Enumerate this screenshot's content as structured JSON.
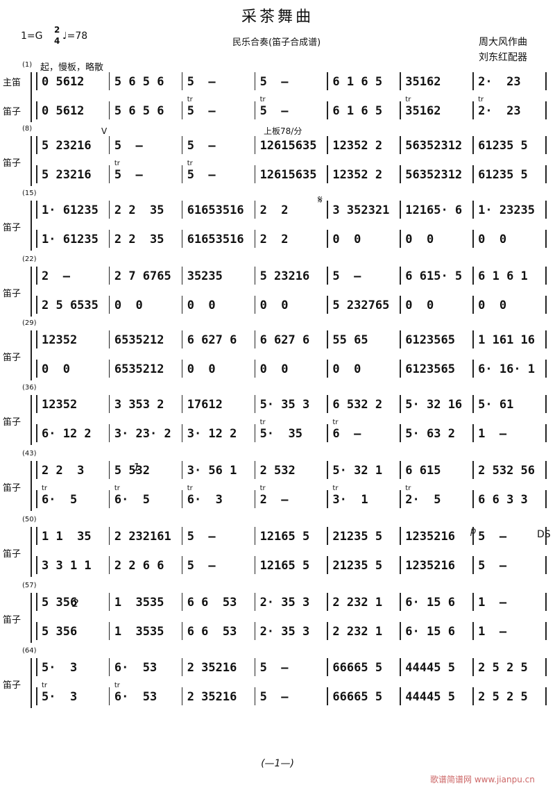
{
  "header": {
    "title": "采茶舞曲",
    "key": "1=G",
    "time_top": "2",
    "time_bottom": "4",
    "tempo": "♩=78",
    "subtitle": "民乐合奏(笛子合成谱)",
    "composer": "周大风作曲",
    "arranger": "刘东红配器"
  },
  "annotations": {
    "opening": "起，慢板，略散",
    "tempo_change": "上板78/分",
    "segno": "𝄋",
    "volta_1": "1",
    "volta_2": "2",
    "ds": "DS",
    "dynamic": "p",
    "breath": "V",
    "trill": "tr"
  },
  "systems": [
    {
      "number": "(1)",
      "labels": [
        "主笛",
        "笛子"
      ],
      "top": [
        "0 5612",
        "5 6 5 6",
        "5  –",
        "5  –",
        "6 1 6 5",
        "35162",
        "2·  23"
      ],
      "bottom": [
        "0 5612",
        "5 6 5 6",
        "5  –",
        "5  –",
        "6 1 6 5",
        "35162",
        "2·  23"
      ]
    },
    {
      "number": "(8)",
      "labels": [
        "笛子"
      ],
      "top": [
        "5 23216",
        "5  –",
        "5  –",
        "12615635",
        "12352 2",
        "56352312",
        "61235 5"
      ],
      "bottom": [
        "5 23216",
        "5  –",
        "5  –",
        "12615635",
        "12352 2",
        "56352312",
        "61235 5"
      ]
    },
    {
      "number": "(15)",
      "labels": [
        "笛子"
      ],
      "top": [
        "1· 61235",
        "2 2  35",
        "61653516",
        "2  2",
        "3 352321",
        "12165· 6",
        "1· 23235"
      ],
      "bottom": [
        "1· 61235",
        "2 2  35",
        "61653516",
        "2  2",
        "0  0",
        "0  0",
        "0  0"
      ]
    },
    {
      "number": "(22)",
      "labels": [
        "笛子"
      ],
      "top": [
        "2  –",
        "2 7 6765",
        "35235",
        "5 23216",
        "5  –",
        "6 615· 5",
        "6 1 6 1"
      ],
      "bottom": [
        "2 5 6535",
        "0  0",
        "0  0",
        "0  0",
        "5 232765",
        "0  0",
        "0  0"
      ]
    },
    {
      "number": "(29)",
      "labels": [
        "笛子"
      ],
      "top": [
        "12352",
        "6535212",
        "6 627 6",
        "6 627 6",
        "55 65",
        "6123565",
        "1 161 16"
      ],
      "bottom": [
        "0  0",
        "6535212",
        "0  0",
        "0  0",
        "0  0",
        "6123565",
        "6· 16· 1"
      ]
    },
    {
      "number": "(36)",
      "labels": [
        "笛子"
      ],
      "top": [
        "12352",
        "3 353 2",
        "17612",
        "5· 35 3",
        "6 532 2",
        "5· 32 16",
        "5· 61"
      ],
      "bottom": [
        "6· 12 2",
        "3· 23· 2",
        "3· 12 2",
        "5·  35",
        "6  –",
        "5· 63 2",
        "1  –"
      ]
    },
    {
      "number": "(43)",
      "labels": [
        "笛子"
      ],
      "top": [
        "2 2  3",
        "5 532",
        "3· 56 1",
        "2 532",
        "5· 32 1",
        "6 615",
        "2 532 56"
      ],
      "bottom": [
        "6·  5",
        "6·  5",
        "6·  3",
        "2  –",
        "3·  1",
        "2·  5",
        "6 6 3 3"
      ]
    },
    {
      "number": "(50)",
      "labels": [
        "笛子"
      ],
      "top": [
        "1 1  35",
        "2 232161",
        "5  –",
        "12165 5",
        "21235 5",
        "1235216",
        "5  –"
      ],
      "bottom": [
        "3 3 1 1",
        "2 2 6 6",
        "5  –",
        "12165 5",
        "21235 5",
        "1235216",
        "5  –"
      ]
    },
    {
      "number": "(57)",
      "labels": [
        "笛子"
      ],
      "top": [
        "5 356",
        "1  3535",
        "6 6  53",
        "2· 35 3",
        "2 232 1",
        "6· 15 6",
        "1  –"
      ],
      "bottom": [
        "5 356",
        "1  3535",
        "6 6  53",
        "2· 35 3",
        "2 232 1",
        "6· 15 6",
        "1  –"
      ]
    },
    {
      "number": "(64)",
      "labels": [
        "笛子"
      ],
      "top": [
        "5·  3",
        "6·  53",
        "2 35216",
        "5  –",
        "66665 5",
        "44445 5",
        "2 5 2 5"
      ],
      "bottom": [
        "5·  3",
        "6·  53",
        "2 35216",
        "5  –",
        "66665 5",
        "44445 5",
        "2 5 2 5"
      ]
    }
  ],
  "footer": {
    "page": "(—1—)",
    "watermark": "歌谱简谱网 www.jianpu.cn"
  }
}
